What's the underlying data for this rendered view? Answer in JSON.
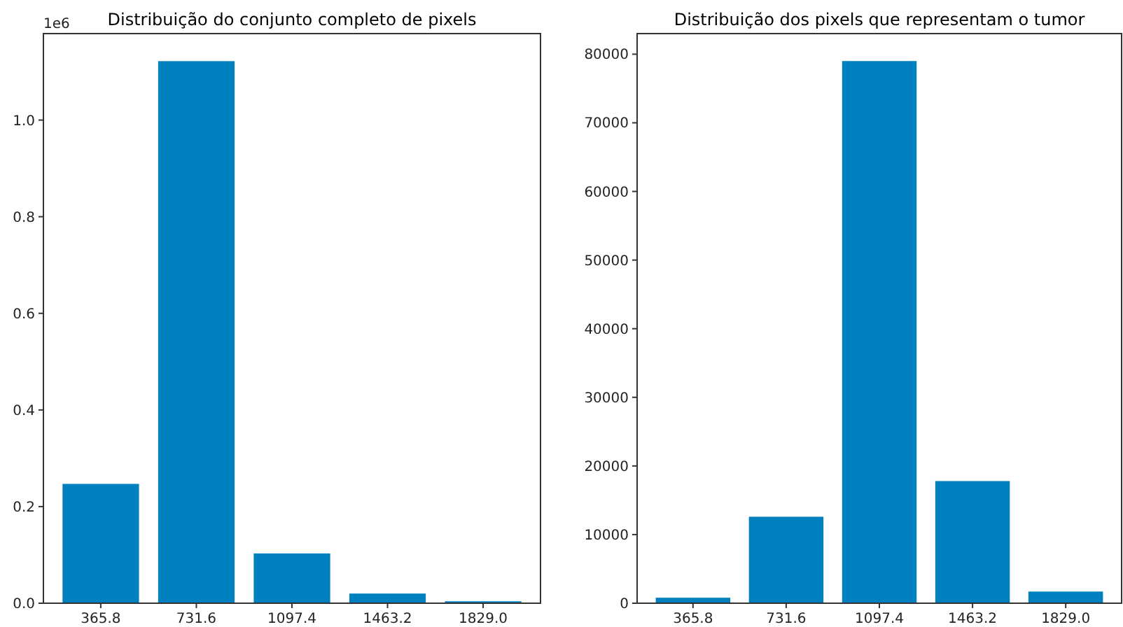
{
  "chart_data": [
    {
      "type": "bar",
      "title": "Distribuição do conjunto completo de pixels",
      "categories": [
        "365.8",
        "731.6",
        "1097.4",
        "1463.2",
        "1829.0"
      ],
      "values": [
        0.247,
        1.122,
        0.103,
        0.02,
        0.004
      ],
      "color": "#0080bf",
      "ylim": [
        0,
        1.179
      ],
      "yticks": [
        {
          "value": 0,
          "label": "0.0"
        },
        0.2,
        0.4,
        0.6,
        0.8,
        {
          "value": 1,
          "label": "1.0"
        }
      ],
      "annotations": [
        "1e6"
      ]
    },
    {
      "type": "bar",
      "title": "Distribuição dos pixels que representam o tumor",
      "categories": [
        "365.8",
        "731.6",
        "1097.4",
        "1463.2",
        "1829.0"
      ],
      "values": [
        800,
        12600,
        79000,
        17800,
        1700
      ],
      "color": "#0080bf",
      "ylim": [
        0,
        83000
      ],
      "yticks": [
        0,
        10000,
        20000,
        30000,
        40000,
        50000,
        60000,
        70000,
        80000
      ]
    }
  ]
}
